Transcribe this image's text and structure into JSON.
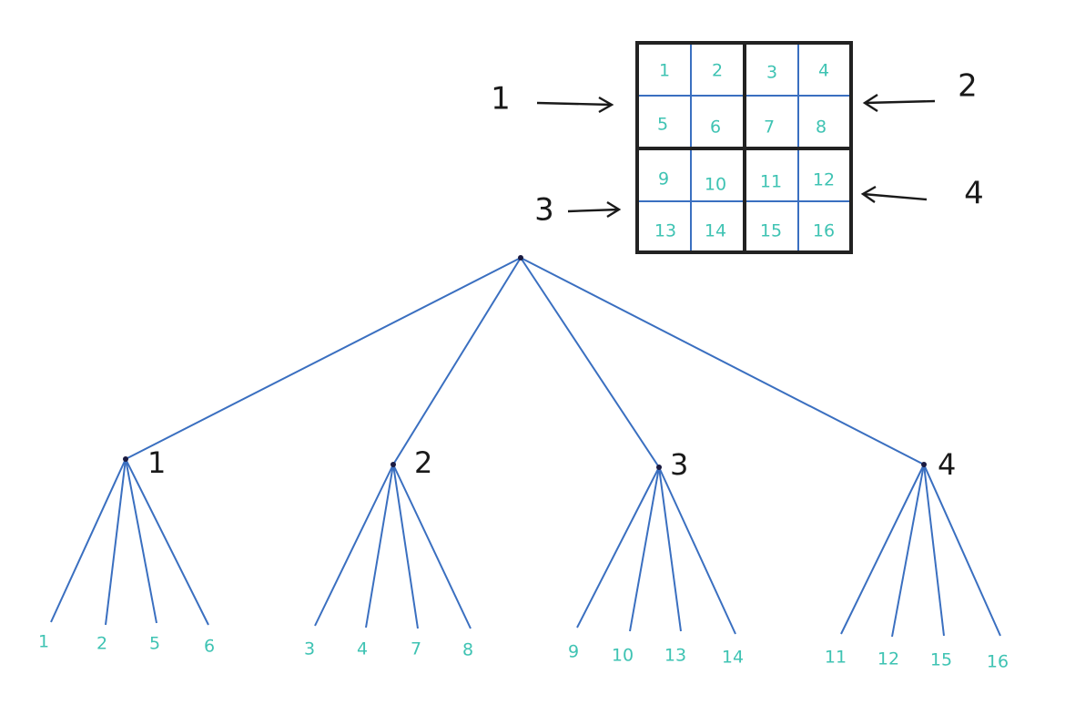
{
  "grid": {
    "cells": [
      "1",
      "2",
      "3",
      "4",
      "5",
      "6",
      "7",
      "8",
      "9",
      "10",
      "11",
      "12",
      "13",
      "14",
      "15",
      "16"
    ]
  },
  "quadrant_labels": {
    "top_left": "1",
    "top_right": "2",
    "bottom_left": "3",
    "bottom_right": "4"
  },
  "tree": {
    "branches": [
      {
        "label": "1",
        "leaves": [
          "1",
          "2",
          "5",
          "6"
        ]
      },
      {
        "label": "2",
        "leaves": [
          "3",
          "4",
          "7",
          "8"
        ]
      },
      {
        "label": "3",
        "leaves": [
          "9",
          "10",
          "13",
          "14"
        ]
      },
      {
        "label": "4",
        "leaves": [
          "11",
          "12",
          "15",
          "16"
        ]
      }
    ]
  },
  "colors": {
    "edge": "#3a6fc0",
    "grid_thin": "#3a6fc0",
    "grid_thick": "#222222",
    "number_text": "#3fc3b3",
    "label_text": "#1a1a1a"
  }
}
